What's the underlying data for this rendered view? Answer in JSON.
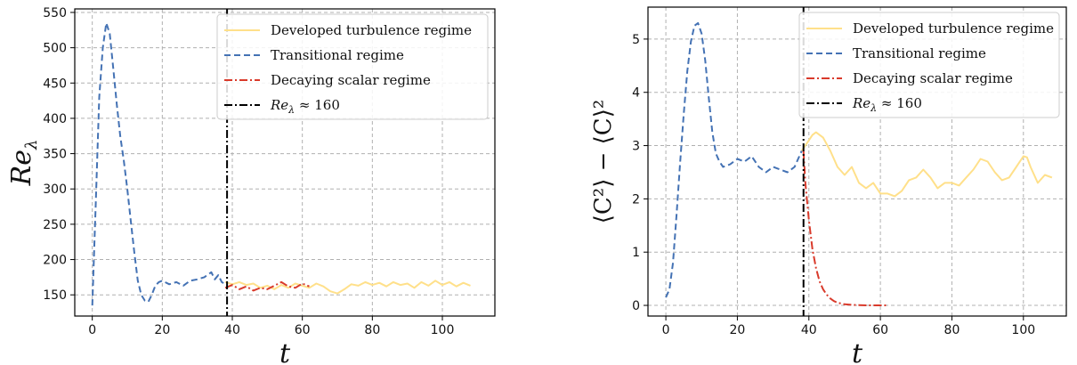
{
  "chart_data": [
    {
      "type": "line",
      "xlabel": "t",
      "ylabel": "Re",
      "ylabel_sub": "λ",
      "xlim": [
        -5,
        115
      ],
      "ylim": [
        120,
        555
      ],
      "xticks": [
        0,
        20,
        40,
        60,
        80,
        100
      ],
      "yticks": [
        150,
        200,
        250,
        300,
        350,
        400,
        450,
        500,
        550
      ],
      "grid": true,
      "legend_position": "top-right",
      "vline": {
        "x": 38.5,
        "label": "Re_λ ≈ 160"
      },
      "series": [
        {
          "name": "Developed turbulence regime",
          "color": "#ffe08a",
          "style": "solid",
          "x": [
            38,
            40,
            42,
            44,
            46,
            48,
            50,
            52,
            54,
            56,
            58,
            60,
            62,
            64,
            66,
            68,
            70,
            72,
            74,
            76,
            78,
            80,
            82,
            84,
            86,
            88,
            90,
            92,
            94,
            96,
            98,
            100,
            102,
            104,
            106,
            108
          ],
          "y": [
            168,
            165,
            168,
            164,
            166,
            160,
            163,
            158,
            164,
            160,
            166,
            163,
            160,
            166,
            162,
            155,
            152,
            158,
            165,
            163,
            168,
            164,
            167,
            162,
            168,
            164,
            166,
            160,
            168,
            163,
            170,
            164,
            168,
            162,
            167,
            163
          ]
        },
        {
          "name": "Transitional regime",
          "color": "#4472b4",
          "style": "dashed",
          "x": [
            0,
            1,
            2,
            3,
            4,
            5,
            6,
            7,
            8,
            9,
            10,
            11,
            12,
            13,
            14,
            15,
            16,
            17,
            18,
            19,
            20,
            22,
            24,
            26,
            28,
            30,
            32,
            34,
            35,
            36,
            37,
            38
          ],
          "y": [
            135,
            280,
            430,
            500,
            535,
            520,
            470,
            420,
            375,
            340,
            300,
            255,
            210,
            170,
            150,
            142,
            140,
            150,
            163,
            168,
            170,
            165,
            168,
            163,
            170,
            172,
            175,
            182,
            172,
            178,
            168,
            165
          ]
        },
        {
          "name": "Decaying scalar regime",
          "color": "#d93a2b",
          "style": "dashdot",
          "x": [
            38,
            40,
            42,
            44,
            46,
            48,
            50,
            52,
            54,
            56,
            58,
            60,
            62
          ],
          "y": [
            160,
            164,
            158,
            162,
            156,
            160,
            158,
            163,
            168,
            162,
            160,
            166,
            162
          ]
        }
      ]
    },
    {
      "type": "line",
      "xlabel": "t",
      "ylabel": "⟨C²⟩ − ⟨C⟩²",
      "xlim": [
        -5,
        112
      ],
      "ylim": [
        -0.2,
        5.6
      ],
      "xticks": [
        0,
        20,
        40,
        60,
        80,
        100
      ],
      "yticks": [
        0,
        1,
        2,
        3,
        4,
        5
      ],
      "grid": true,
      "legend_position": "top-right",
      "vline": {
        "x": 38.5,
        "label": "Re_λ ≈ 160"
      },
      "series": [
        {
          "name": "Developed turbulence regime",
          "color": "#ffe08a",
          "style": "solid",
          "x": [
            38,
            40,
            41,
            42,
            44,
            46,
            48,
            50,
            52,
            54,
            56,
            58,
            60,
            62,
            64,
            66,
            68,
            70,
            72,
            74,
            76,
            78,
            80,
            82,
            84,
            86,
            88,
            90,
            92,
            94,
            96,
            98,
            100,
            101,
            102,
            104,
            106,
            108
          ],
          "y": [
            2.9,
            3.1,
            3.2,
            3.25,
            3.15,
            2.9,
            2.6,
            2.45,
            2.6,
            2.3,
            2.2,
            2.3,
            2.1,
            2.1,
            2.05,
            2.15,
            2.35,
            2.4,
            2.55,
            2.4,
            2.2,
            2.3,
            2.3,
            2.25,
            2.4,
            2.55,
            2.75,
            2.7,
            2.5,
            2.35,
            2.4,
            2.6,
            2.8,
            2.78,
            2.6,
            2.3,
            2.45,
            2.4
          ]
        },
        {
          "name": "Transitional regime",
          "color": "#4472b4",
          "style": "dashed",
          "x": [
            0,
            1,
            2,
            3,
            4,
            5,
            6,
            7,
            8,
            9,
            10,
            11,
            12,
            13,
            14,
            15,
            16,
            18,
            20,
            22,
            24,
            26,
            28,
            30,
            32,
            34,
            36,
            38
          ],
          "y": [
            0.15,
            0.3,
            0.8,
            1.7,
            2.7,
            3.6,
            4.4,
            4.95,
            5.25,
            5.3,
            5.1,
            4.6,
            3.9,
            3.25,
            2.85,
            2.7,
            2.6,
            2.65,
            2.75,
            2.7,
            2.8,
            2.6,
            2.5,
            2.6,
            2.55,
            2.5,
            2.6,
            2.9
          ]
        },
        {
          "name": "Decaying scalar regime",
          "color": "#d93a2b",
          "style": "dashdot",
          "x": [
            38.5,
            39,
            40,
            41,
            42,
            43,
            44,
            45,
            46,
            47,
            48,
            50,
            52,
            54,
            56,
            58,
            60,
            62
          ],
          "y": [
            2.9,
            2.3,
            1.6,
            1.05,
            0.7,
            0.45,
            0.3,
            0.2,
            0.13,
            0.08,
            0.05,
            0.02,
            0.01,
            0.005,
            0,
            0,
            0,
            0
          ]
        }
      ]
    }
  ]
}
